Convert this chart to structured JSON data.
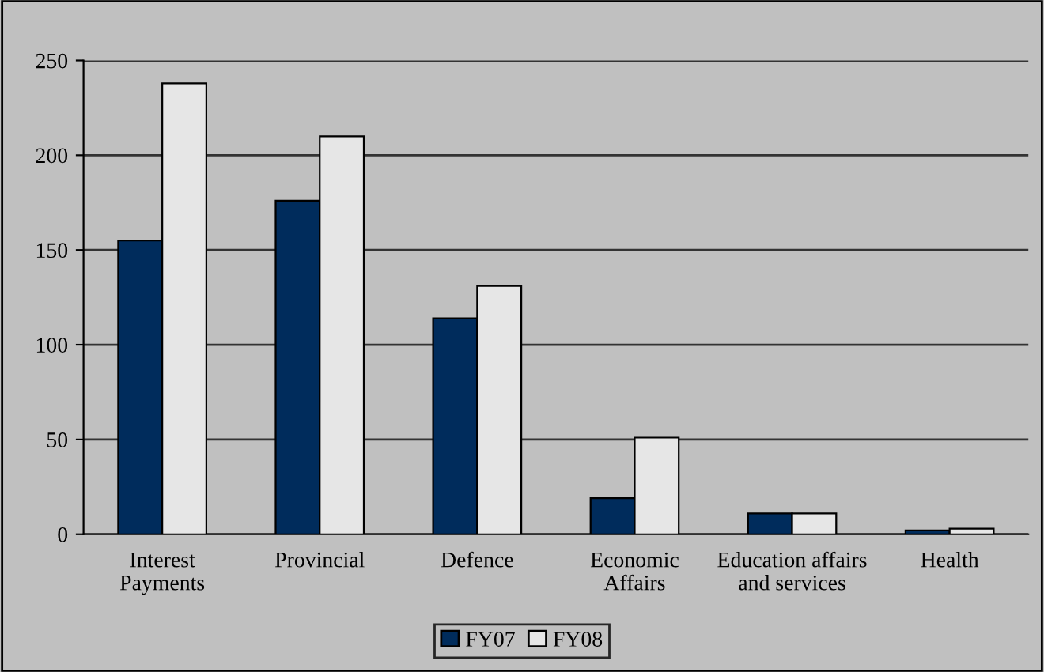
{
  "chart_data": {
    "type": "bar",
    "categories": [
      "Interest\nPayments",
      "Provincial",
      "Defence",
      "Economic\nAffairs",
      "Education affairs\nand services",
      "Health"
    ],
    "series": [
      {
        "name": "FY07",
        "color": "#002c5c",
        "values": [
          155,
          176,
          114,
          19,
          11,
          2
        ]
      },
      {
        "name": "FY08",
        "color": "#e6e6e6",
        "values": [
          238,
          210,
          131,
          51,
          11,
          3
        ]
      }
    ],
    "ylim": [
      0,
      250
    ],
    "yticks": [
      0,
      50,
      100,
      150,
      200,
      250
    ],
    "grid": "y",
    "legend": "bottom"
  }
}
